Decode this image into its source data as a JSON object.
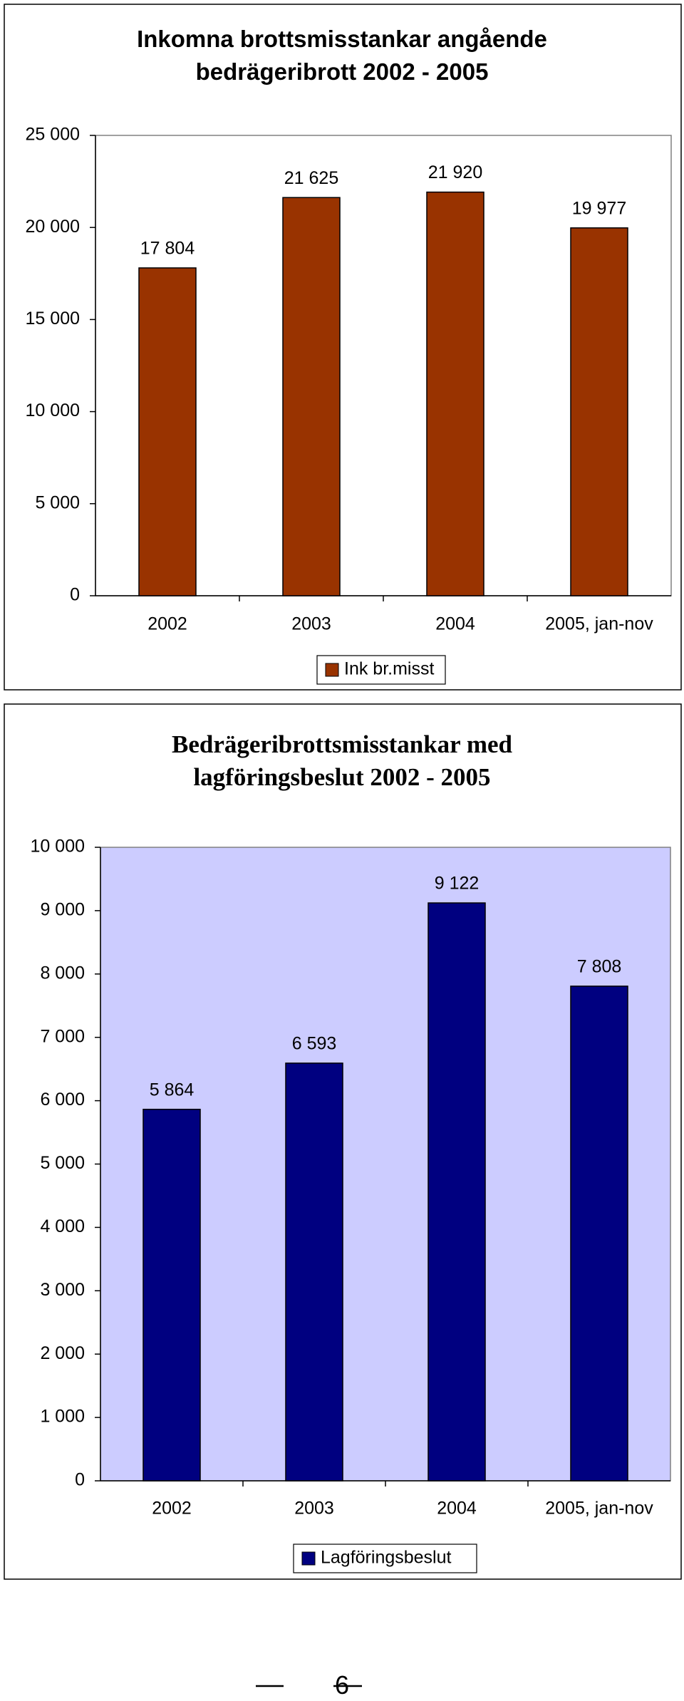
{
  "chart_data": [
    {
      "type": "bar",
      "title": "Inkomna brottsmisstankar angående bedrägeribrott 2002 - 2005",
      "categories": [
        "2002",
        "2003",
        "2004",
        "2005, jan-nov"
      ],
      "series": [
        {
          "name": "Ink br.misst",
          "color": "#993300",
          "values": [
            17804,
            21625,
            21920,
            19977
          ],
          "value_labels": [
            "17 804",
            "21 625",
            "21 920",
            "19 977"
          ]
        }
      ],
      "ylim": [
        0,
        25000
      ],
      "yticks": [
        0,
        {
          "value": 5000,
          "label": "5 000"
        },
        {
          "value": 10000,
          "label": "10 000"
        },
        {
          "value": 15000,
          "label": "15 000"
        },
        {
          "value": 20000,
          "label": "20 000"
        },
        {
          "value": 25000,
          "label": "25 000"
        }
      ],
      "grid": false,
      "plot_background": "#ffffff",
      "legend": "bottom"
    },
    {
      "type": "bar",
      "title": "Bedrägeribrottsmisstankar med lagföringsbeslut 2002 - 2005",
      "categories": [
        "2002",
        "2003",
        "2004",
        "2005, jan-nov"
      ],
      "series": [
        {
          "name": "Lagföringsbeslut",
          "color": "#000080",
          "values": [
            5864,
            6593,
            9122,
            7808
          ],
          "value_labels": [
            "5 864",
            "6 593",
            "9 122",
            "7 808"
          ]
        }
      ],
      "ylim": [
        0,
        10000
      ],
      "yticks": [
        0,
        {
          "value": 1000,
          "label": "1 000"
        },
        {
          "value": 2000,
          "label": "2 000"
        },
        {
          "value": 3000,
          "label": "3 000"
        },
        {
          "value": 4000,
          "label": "4 000"
        },
        {
          "value": 5000,
          "label": "5 000"
        },
        {
          "value": 6000,
          "label": "6 000"
        },
        {
          "value": 7000,
          "label": "7 000"
        },
        {
          "value": 8000,
          "label": "8 000"
        },
        {
          "value": 9000,
          "label": "9 000"
        },
        {
          "value": 10000,
          "label": "10 000"
        }
      ],
      "grid": false,
      "plot_background": "#ccccff",
      "legend": "bottom"
    }
  ],
  "page": {
    "number": "6"
  }
}
